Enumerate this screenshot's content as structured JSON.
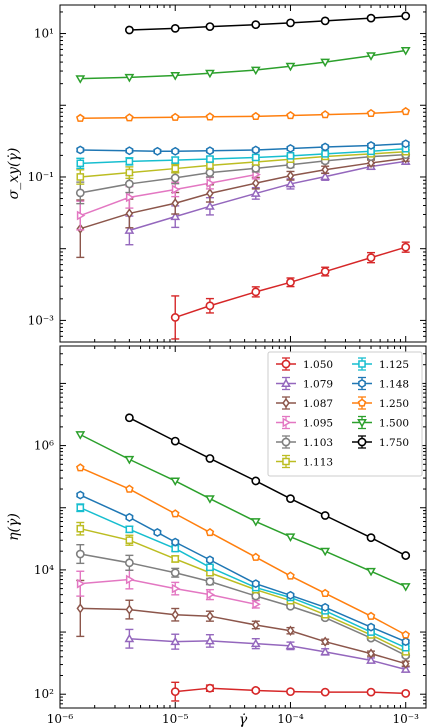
{
  "chart_data": [
    {
      "type": "line",
      "id": "stress",
      "ylabel": "σ_xy(γ̇)",
      "xscale": "log",
      "yscale": "log",
      "xlim": [
        1e-06,
        0.0015
      ],
      "ylim": [
        0.0005,
        25
      ],
      "yticks": [
        {
          "value": 0.001,
          "label": "10⁻³"
        },
        {
          "value": 0.1,
          "label": "10⁻¹"
        },
        {
          "value": 10,
          "label": "10¹"
        }
      ],
      "series": [
        {
          "name": "1.050",
          "color": "#d62728",
          "marker": "o",
          "x": [
            1e-05,
            2e-05,
            5e-05,
            0.0001,
            0.0002,
            0.0005,
            0.001
          ],
          "y": [
            0.0011,
            0.0016,
            0.0025,
            0.0034,
            0.0048,
            0.0075,
            0.0105
          ],
          "err": [
            0.3,
            0.1,
            0.07,
            0.06,
            0.06,
            0.07,
            0.07
          ]
        },
        {
          "name": "1.079",
          "color": "#9467bd",
          "marker": "^",
          "x": [
            4e-06,
            1e-05,
            2e-05,
            5e-05,
            0.0001,
            0.0002,
            0.0005,
            0.001
          ],
          "y": [
            0.018,
            0.028,
            0.039,
            0.059,
            0.08,
            0.101,
            0.14,
            0.165
          ],
          "err": [
            0.2,
            0.15,
            0.12,
            0.08,
            0.07,
            0.05,
            0.04,
            0.04
          ]
        },
        {
          "name": "1.087",
          "color": "#8c564b",
          "marker": "d",
          "x": [
            1.5e-06,
            4e-06,
            1e-05,
            2e-05,
            5e-05,
            0.0001,
            0.0002,
            0.0005,
            0.001
          ],
          "y": [
            0.019,
            0.031,
            0.043,
            0.059,
            0.082,
            0.104,
            0.126,
            0.157,
            0.182
          ],
          "err": [
            0.4,
            0.2,
            0.15,
            0.12,
            0.08,
            0.06,
            0.05,
            0.04,
            0.04
          ]
        },
        {
          "name": "1.095",
          "color": "#e377c2",
          "marker": ">",
          "x": [
            1.5e-06,
            4e-06,
            1e-05,
            2e-05,
            5e-05
          ],
          "y": [
            0.029,
            0.052,
            0.067,
            0.082,
            0.108
          ],
          "err": [
            0.2,
            0.15,
            0.1,
            0.08,
            0.06
          ]
        },
        {
          "name": "1.103",
          "color": "#7f7f7f",
          "marker": "o",
          "x": [
            1.5e-06,
            4e-06,
            1e-05,
            2e-05,
            5e-05,
            0.0001,
            0.0002,
            0.0005,
            0.001
          ],
          "y": [
            0.06,
            0.08,
            0.097,
            0.115,
            0.132,
            0.148,
            0.168,
            0.192,
            0.205
          ],
          "err": [
            0.15,
            0.12,
            0.08,
            0.06,
            0.05,
            0.04,
            0.03,
            0.03,
            0.03
          ]
        },
        {
          "name": "1.113",
          "color": "#bcbd22",
          "marker": "s",
          "x": [
            1.5e-06,
            4e-06,
            1e-05,
            2e-05,
            5e-05,
            0.0001,
            0.0002,
            0.0005,
            0.001
          ],
          "y": [
            0.1,
            0.115,
            0.131,
            0.145,
            0.162,
            0.177,
            0.193,
            0.21,
            0.225
          ],
          "err": [
            0.1,
            0.08,
            0.06,
            0.05,
            0.04,
            0.03,
            0.03,
            0.03,
            0.03
          ]
        },
        {
          "name": "1.125",
          "color": "#17becf",
          "marker": "s",
          "x": [
            1.5e-06,
            4e-06,
            1e-05,
            2e-05,
            5e-05,
            0.0001,
            0.0002,
            0.0005,
            0.001
          ],
          "y": [
            0.155,
            0.165,
            0.172,
            0.178,
            0.187,
            0.197,
            0.21,
            0.228,
            0.248
          ],
          "err": [
            0.07,
            0.05,
            0.04,
            0.03,
            0.03,
            0.02,
            0.02,
            0.02,
            0.02
          ]
        },
        {
          "name": "1.148",
          "color": "#1f77b4",
          "marker": "h",
          "x": [
            1.5e-06,
            4e-06,
            7e-06,
            1e-05,
            2e-05,
            5e-05,
            0.0001,
            0.0002,
            0.0005,
            0.001
          ],
          "y": [
            0.238,
            0.232,
            0.228,
            0.228,
            0.232,
            0.238,
            0.25,
            0.262,
            0.275,
            0.29
          ],
          "err": [
            0.02,
            0.02,
            0.02,
            0.02,
            0.02,
            0.02,
            0.02,
            0.02,
            0.02,
            0.02
          ]
        },
        {
          "name": "1.250",
          "color": "#ff7f0e",
          "marker": "p",
          "x": [
            1.5e-06,
            4e-06,
            1e-05,
            2e-05,
            5e-05,
            0.0001,
            0.0002,
            0.0005,
            0.001
          ],
          "y": [
            0.66,
            0.67,
            0.68,
            0.69,
            0.7,
            0.72,
            0.74,
            0.77,
            0.82
          ],
          "err": [
            0.01,
            0.01,
            0.01,
            0.01,
            0.01,
            0.01,
            0.01,
            0.01,
            0.01
          ]
        },
        {
          "name": "1.500",
          "color": "#2ca02c",
          "marker": "v",
          "x": [
            1.5e-06,
            4e-06,
            1e-05,
            2e-05,
            5e-05,
            0.0001,
            0.0002,
            0.0005,
            0.001
          ],
          "y": [
            2.35,
            2.45,
            2.6,
            2.8,
            3.1,
            3.5,
            4.0,
            4.9,
            5.8
          ],
          "err": [
            0.01,
            0.01,
            0.01,
            0.01,
            0.01,
            0.01,
            0.01,
            0.01,
            0.01
          ]
        },
        {
          "name": "1.750",
          "color": "#000000",
          "marker": "o",
          "x": [
            4e-06,
            1e-05,
            2e-05,
            5e-05,
            0.0001,
            0.0002,
            0.0005,
            0.001
          ],
          "y": [
            11.2,
            11.8,
            12.5,
            13.3,
            14.1,
            15.0,
            16.4,
            17.6
          ],
          "err": [
            0.01,
            0.01,
            0.01,
            0.01,
            0.01,
            0.01,
            0.01,
            0.01
          ]
        }
      ]
    },
    {
      "type": "line",
      "id": "viscosity",
      "ylabel": "η(γ̇)",
      "xlabel": "γ̇",
      "xscale": "log",
      "yscale": "log",
      "xlim": [
        1e-06,
        0.0015
      ],
      "ylim": [
        60,
        40000000.0
      ],
      "yticks": [
        {
          "value": 100,
          "label": "10²"
        },
        {
          "value": 10000,
          "label": "10⁴"
        },
        {
          "value": 1000000,
          "label": "10⁶"
        }
      ],
      "xticks": [
        {
          "value": 1e-06,
          "label": "10⁻⁶"
        },
        {
          "value": 1e-05,
          "label": "10⁻⁵"
        },
        {
          "value": 0.0001,
          "label": "10⁻⁴"
        },
        {
          "value": 0.001,
          "label": "10⁻³"
        }
      ],
      "legend": {
        "position": "top-right",
        "columns": 2
      },
      "series": [
        {
          "name": "1.050",
          "color": "#d62728",
          "marker": "o",
          "x": [
            1e-05,
            2e-05,
            5e-05,
            0.0001,
            0.0002,
            0.0005,
            0.001
          ],
          "y": [
            110,
            125,
            115,
            110,
            108,
            108,
            103
          ],
          "err": [
            0.15,
            0.05,
            0.03,
            0.02,
            0.02,
            0.02,
            0.02
          ]
        },
        {
          "name": "1.079",
          "color": "#9467bd",
          "marker": "^",
          "x": [
            4e-06,
            1e-05,
            2e-05,
            5e-05,
            0.0001,
            0.0002,
            0.0005,
            0.001
          ],
          "y": [
            780,
            700,
            720,
            650,
            600,
            480,
            350,
            250
          ],
          "err": [
            0.15,
            0.12,
            0.1,
            0.08,
            0.06,
            0.05,
            0.04,
            0.04
          ]
        },
        {
          "name": "1.087",
          "color": "#8c564b",
          "marker": "d",
          "x": [
            1.5e-06,
            4e-06,
            1e-05,
            2e-05,
            5e-05,
            0.0001,
            0.0002,
            0.0005,
            0.001
          ],
          "y": [
            2400,
            2300,
            1900,
            1800,
            1300,
            1050,
            700,
            450,
            310
          ],
          "err": [
            0.45,
            0.15,
            0.1,
            0.08,
            0.06,
            0.05,
            0.04,
            0.04,
            0.04
          ]
        },
        {
          "name": "1.095",
          "color": "#e377c2",
          "marker": ">",
          "x": [
            1.5e-06,
            4e-06,
            1e-05,
            2e-05,
            5e-05
          ],
          "y": [
            6000,
            7000,
            5000,
            4000,
            2800
          ],
          "err": [
            0.2,
            0.15,
            0.1,
            0.08,
            0.06
          ]
        },
        {
          "name": "1.103",
          "color": "#7f7f7f",
          "marker": "o",
          "x": [
            1.5e-06,
            4e-06,
            1e-05,
            2e-05,
            5e-05,
            0.0001,
            0.0002,
            0.0005,
            0.001
          ],
          "y": [
            18000,
            13000,
            9000,
            6500,
            3800,
            2600,
            1700,
            800,
            420
          ],
          "err": [
            0.15,
            0.12,
            0.07,
            0.05,
            0.04,
            0.03,
            0.03,
            0.03,
            0.03
          ]
        },
        {
          "name": "1.113",
          "color": "#bcbd22",
          "marker": "s",
          "x": [
            1.5e-06,
            4e-06,
            1e-05,
            2e-05,
            5e-05,
            0.0001,
            0.0002,
            0.0005,
            0.001
          ],
          "y": [
            46000,
            30000,
            15000,
            9000,
            4800,
            3200,
            1900,
            900,
            480
          ],
          "err": [
            0.1,
            0.08,
            0.05,
            0.04,
            0.03,
            0.03,
            0.03,
            0.03,
            0.03
          ]
        },
        {
          "name": "1.125",
          "color": "#17becf",
          "marker": "s",
          "x": [
            1.5e-06,
            4e-06,
            1e-05,
            2e-05,
            5e-05,
            0.0001,
            0.0002,
            0.0005,
            0.001
          ],
          "y": [
            100000,
            45000,
            22000,
            11000,
            5200,
            3600,
            2200,
            1000,
            560
          ],
          "err": [
            0.06,
            0.05,
            0.04,
            0.03,
            0.02,
            0.02,
            0.02,
            0.02,
            0.02
          ]
        },
        {
          "name": "1.148",
          "color": "#1f77b4",
          "marker": "h",
          "x": [
            1.5e-06,
            4e-06,
            7e-06,
            1e-05,
            2e-05,
            5e-05,
            0.0001,
            0.0002,
            0.0005,
            0.001
          ],
          "y": [
            160000,
            70000,
            40000,
            28000,
            14500,
            6000,
            3900,
            2500,
            1200,
            700
          ],
          "err": [
            0.02,
            0.02,
            0.02,
            0.02,
            0.02,
            0.02,
            0.02,
            0.02,
            0.02,
            0.02
          ]
        },
        {
          "name": "1.250",
          "color": "#ff7f0e",
          "marker": "p",
          "x": [
            1.5e-06,
            4e-06,
            1e-05,
            2e-05,
            5e-05,
            0.0001,
            0.0002,
            0.0005,
            0.001
          ],
          "y": [
            440000,
            200000,
            80000,
            40000,
            16000,
            8000,
            4200,
            1800,
            900
          ],
          "err": [
            0.01,
            0.01,
            0.01,
            0.01,
            0.01,
            0.01,
            0.01,
            0.01,
            0.01
          ]
        },
        {
          "name": "1.500",
          "color": "#2ca02c",
          "marker": "v",
          "x": [
            1.5e-06,
            4e-06,
            1e-05,
            2e-05,
            5e-05,
            0.0001,
            0.0002,
            0.0005,
            0.001
          ],
          "y": [
            1500000,
            600000,
            270000,
            140000,
            60000,
            34000,
            20000,
            9500,
            5400
          ],
          "err": [
            0.01,
            0.01,
            0.01,
            0.01,
            0.01,
            0.01,
            0.01,
            0.01,
            0.01
          ]
        },
        {
          "name": "1.750",
          "color": "#000000",
          "marker": "o",
          "x": [
            4e-06,
            1e-05,
            2e-05,
            5e-05,
            0.0001,
            0.0002,
            0.0005,
            0.001
          ],
          "y": [
            2800000,
            1180000,
            620000,
            270000,
            140000,
            75000,
            33000,
            17000
          ],
          "err": [
            0.01,
            0.01,
            0.01,
            0.01,
            0.01,
            0.01,
            0.01,
            0.01
          ]
        }
      ]
    }
  ]
}
